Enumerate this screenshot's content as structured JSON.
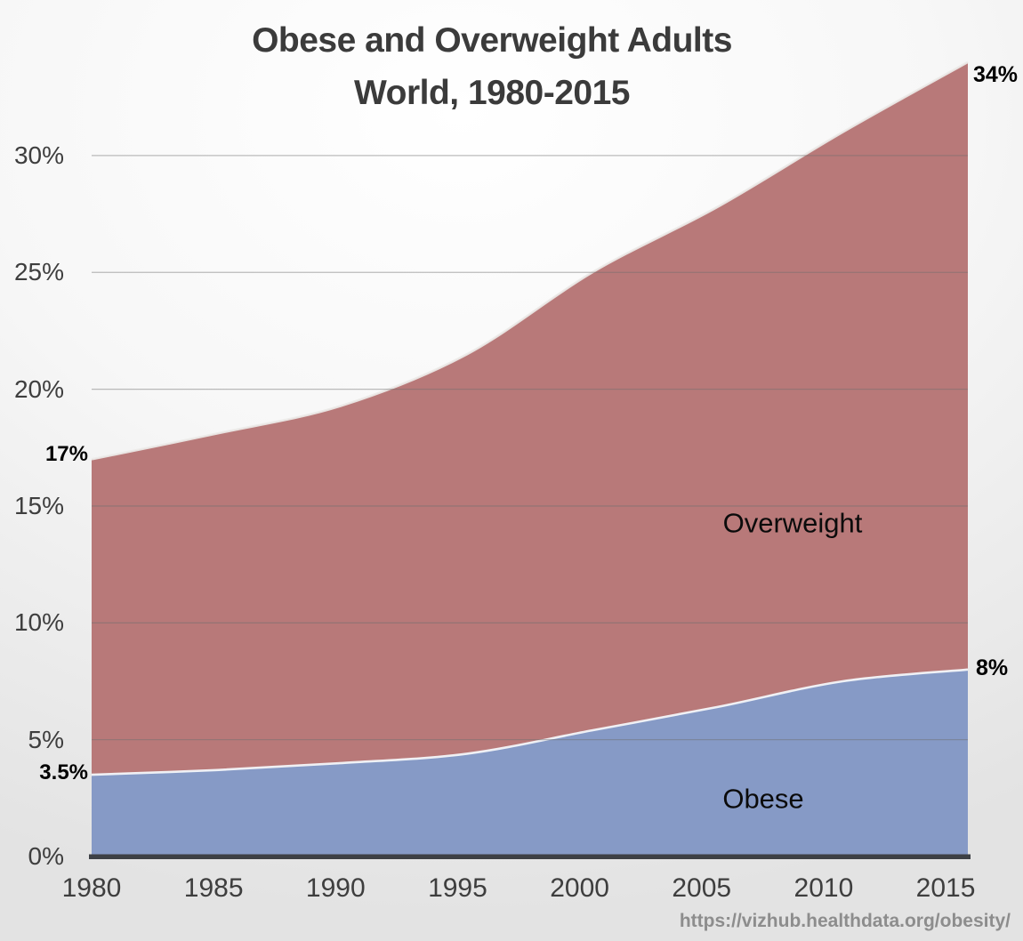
{
  "title": {
    "line1": "Obese and Overweight Adults",
    "line2": "World, 1980-2015"
  },
  "chart_data": {
    "type": "area",
    "stacked": true,
    "title": "Obese and Overweight Adults — World, 1980-2015",
    "x": [
      1980,
      1985,
      1990,
      1995,
      2000,
      2005,
      2010,
      2015
    ],
    "series": [
      {
        "name": "Obese",
        "color": "#869AC6",
        "values": [
          3.5,
          3.7,
          4.0,
          4.4,
          5.4,
          6.4,
          7.5,
          8.0
        ]
      },
      {
        "name": "Overweight",
        "color": "#B87979",
        "values": [
          13.5,
          14.4,
          15.3,
          17.1,
          19.6,
          21.4,
          23.5,
          26.0
        ]
      }
    ],
    "totals": [
      17.0,
      18.1,
      19.3,
      21.5,
      25.0,
      27.8,
      31.0,
      34.0
    ],
    "x_ticks": [
      "1980",
      "1985",
      "1990",
      "1995",
      "2000",
      "2005",
      "2010",
      "2015"
    ],
    "y_ticks": [
      "0%",
      "5%",
      "10%",
      "15%",
      "20%",
      "25%",
      "30%"
    ],
    "ylim": [
      0,
      34
    ],
    "grid": true,
    "legend_position": "in-plot-labels",
    "area_labels": {
      "overweight": "Overweight",
      "obese": "Obese"
    },
    "annotations": {
      "total_start": "17%",
      "total_end": "34%",
      "obese_start": "3.5%",
      "obese_end": "8%"
    },
    "colors": {
      "overweight_fill": "#B87979",
      "obese_fill": "#869AC6",
      "edge_stroke": "#ECEAE8",
      "gridline": "#6E6E6E",
      "axis_line": "#3D4045",
      "tick_text": "#3E3E3E",
      "title_text": "#3B3B3B",
      "url_text": "#8D8D8D"
    }
  },
  "footer": {
    "url": "https://vizhub.healthdata.org/obesity/"
  }
}
